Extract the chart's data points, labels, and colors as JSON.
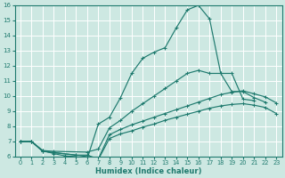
{
  "xlabel": "Humidex (Indice chaleur)",
  "xlim": [
    -0.5,
    23.5
  ],
  "ylim": [
    6,
    16
  ],
  "xticks": [
    0,
    1,
    2,
    3,
    4,
    5,
    6,
    7,
    8,
    9,
    10,
    11,
    12,
    13,
    14,
    15,
    16,
    17,
    18,
    19,
    20,
    21,
    22,
    23
  ],
  "yticks": [
    6,
    7,
    8,
    9,
    10,
    11,
    12,
    13,
    14,
    15,
    16
  ],
  "bg_color": "#cde8e2",
  "line_color": "#1e7a6e",
  "grid_color": "#ffffff",
  "curves": [
    {
      "x": [
        0,
        1,
        2,
        3,
        4,
        5,
        6,
        7,
        8,
        9,
        10,
        11,
        12,
        13,
        14,
        15,
        16,
        17,
        18,
        19,
        20,
        21
      ],
      "y": [
        7,
        7,
        6.4,
        6.2,
        6.05,
        6.0,
        5.85,
        8.15,
        8.6,
        9.9,
        11.5,
        12.5,
        12.9,
        13.2,
        14.5,
        15.7,
        16.0,
        15.1,
        11.5,
        11.5,
        9.8,
        9.7
      ]
    },
    {
      "x": [
        0,
        1,
        2,
        3,
        6,
        7,
        8,
        9,
        10,
        11,
        12,
        13,
        14,
        15,
        16,
        17,
        18,
        19,
        20,
        21,
        22
      ],
      "y": [
        7,
        7,
        6.4,
        6.35,
        6.3,
        6.5,
        7.9,
        8.4,
        9.0,
        9.5,
        10.0,
        10.5,
        11.0,
        11.5,
        11.7,
        11.5,
        11.5,
        10.3,
        10.3,
        9.9,
        9.6
      ]
    },
    {
      "x": [
        0,
        1,
        2,
        5,
        6,
        7,
        8,
        9,
        10,
        11,
        12,
        13,
        14,
        15,
        16,
        17,
        18,
        19,
        20,
        21,
        22,
        23
      ],
      "y": [
        7,
        7,
        6.35,
        6.1,
        6.1,
        5.85,
        7.45,
        7.8,
        8.1,
        8.35,
        8.6,
        8.85,
        9.1,
        9.35,
        9.6,
        9.85,
        10.1,
        10.25,
        10.35,
        10.15,
        9.95,
        9.55
      ]
    },
    {
      "x": [
        0,
        1,
        2,
        5,
        6,
        7,
        8,
        9,
        10,
        11,
        12,
        13,
        14,
        15,
        16,
        17,
        18,
        19,
        20,
        21,
        22,
        23
      ],
      "y": [
        7,
        7,
        6.35,
        6.1,
        6.0,
        5.8,
        7.2,
        7.5,
        7.7,
        7.95,
        8.15,
        8.4,
        8.6,
        8.8,
        9.0,
        9.2,
        9.35,
        9.45,
        9.5,
        9.4,
        9.25,
        8.85
      ]
    }
  ]
}
